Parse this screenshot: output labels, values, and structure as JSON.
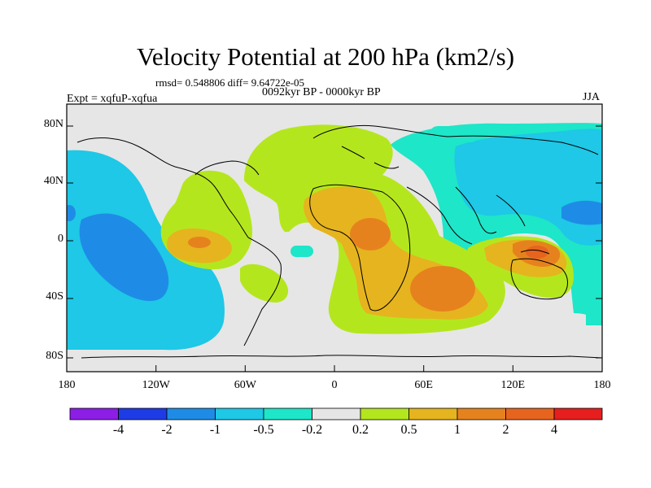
{
  "title": "Velocity Potential at 200 hPa (km2/s)",
  "stats": "rmsd= 0.548806 diff= 9.64722e-05",
  "period": "0092kyr BP - 0000kyr BP",
  "experiment": "Expt = xqfuP-xqfua",
  "season": "JJA",
  "axes": {
    "lat_ticks": [
      "80N",
      "40N",
      "0",
      "40S",
      "80S"
    ],
    "lon_ticks": [
      "180",
      "120W",
      "60W",
      "0",
      "60E",
      "120E",
      "180"
    ]
  },
  "colorbar": {
    "labels": [
      "-4",
      "-2",
      "-1",
      "-0.5",
      "-0.2",
      "0.2",
      "0.5",
      "1",
      "2",
      "4"
    ],
    "colors": [
      "#8c1ee6",
      "#1e3ce6",
      "#1e8ce6",
      "#1ec8e6",
      "#1ee6c8",
      "#e6e6e6",
      "#b4e61e",
      "#e6b41e",
      "#e6821e",
      "#e6641e",
      "#e61e1e"
    ]
  },
  "colors": {
    "neutral": "#e6e6e6",
    "coast": "#000000"
  }
}
